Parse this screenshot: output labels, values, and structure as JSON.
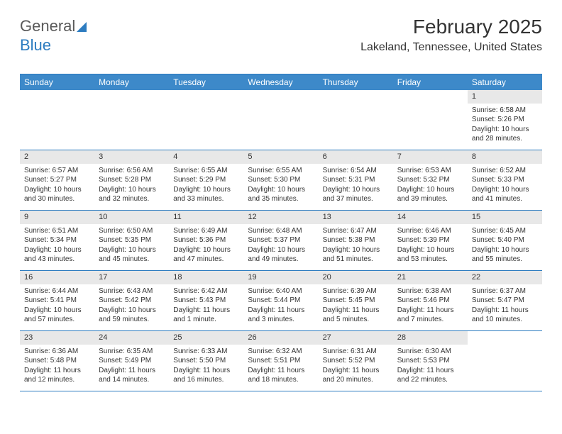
{
  "logo": {
    "text1": "General",
    "text2": "Blue",
    "shape_color": "#2d7cc0"
  },
  "header": {
    "month_title": "February 2025",
    "location": "Lakeland, Tennessee, United States"
  },
  "calendar": {
    "type": "table",
    "header_bg": "#3d89c9",
    "header_text_color": "#ffffff",
    "border_color": "#2d7cc0",
    "daynum_bg": "#e8e8e8",
    "body_font_size": 10,
    "weekdays": [
      "Sunday",
      "Monday",
      "Tuesday",
      "Wednesday",
      "Thursday",
      "Friday",
      "Saturday"
    ],
    "weeks": [
      [
        null,
        null,
        null,
        null,
        null,
        null,
        {
          "num": "1",
          "sunrise": "Sunrise: 6:58 AM",
          "sunset": "Sunset: 5:26 PM",
          "daylight": "Daylight: 10 hours and 28 minutes."
        }
      ],
      [
        {
          "num": "2",
          "sunrise": "Sunrise: 6:57 AM",
          "sunset": "Sunset: 5:27 PM",
          "daylight": "Daylight: 10 hours and 30 minutes."
        },
        {
          "num": "3",
          "sunrise": "Sunrise: 6:56 AM",
          "sunset": "Sunset: 5:28 PM",
          "daylight": "Daylight: 10 hours and 32 minutes."
        },
        {
          "num": "4",
          "sunrise": "Sunrise: 6:55 AM",
          "sunset": "Sunset: 5:29 PM",
          "daylight": "Daylight: 10 hours and 33 minutes."
        },
        {
          "num": "5",
          "sunrise": "Sunrise: 6:55 AM",
          "sunset": "Sunset: 5:30 PM",
          "daylight": "Daylight: 10 hours and 35 minutes."
        },
        {
          "num": "6",
          "sunrise": "Sunrise: 6:54 AM",
          "sunset": "Sunset: 5:31 PM",
          "daylight": "Daylight: 10 hours and 37 minutes."
        },
        {
          "num": "7",
          "sunrise": "Sunrise: 6:53 AM",
          "sunset": "Sunset: 5:32 PM",
          "daylight": "Daylight: 10 hours and 39 minutes."
        },
        {
          "num": "8",
          "sunrise": "Sunrise: 6:52 AM",
          "sunset": "Sunset: 5:33 PM",
          "daylight": "Daylight: 10 hours and 41 minutes."
        }
      ],
      [
        {
          "num": "9",
          "sunrise": "Sunrise: 6:51 AM",
          "sunset": "Sunset: 5:34 PM",
          "daylight": "Daylight: 10 hours and 43 minutes."
        },
        {
          "num": "10",
          "sunrise": "Sunrise: 6:50 AM",
          "sunset": "Sunset: 5:35 PM",
          "daylight": "Daylight: 10 hours and 45 minutes."
        },
        {
          "num": "11",
          "sunrise": "Sunrise: 6:49 AM",
          "sunset": "Sunset: 5:36 PM",
          "daylight": "Daylight: 10 hours and 47 minutes."
        },
        {
          "num": "12",
          "sunrise": "Sunrise: 6:48 AM",
          "sunset": "Sunset: 5:37 PM",
          "daylight": "Daylight: 10 hours and 49 minutes."
        },
        {
          "num": "13",
          "sunrise": "Sunrise: 6:47 AM",
          "sunset": "Sunset: 5:38 PM",
          "daylight": "Daylight: 10 hours and 51 minutes."
        },
        {
          "num": "14",
          "sunrise": "Sunrise: 6:46 AM",
          "sunset": "Sunset: 5:39 PM",
          "daylight": "Daylight: 10 hours and 53 minutes."
        },
        {
          "num": "15",
          "sunrise": "Sunrise: 6:45 AM",
          "sunset": "Sunset: 5:40 PM",
          "daylight": "Daylight: 10 hours and 55 minutes."
        }
      ],
      [
        {
          "num": "16",
          "sunrise": "Sunrise: 6:44 AM",
          "sunset": "Sunset: 5:41 PM",
          "daylight": "Daylight: 10 hours and 57 minutes."
        },
        {
          "num": "17",
          "sunrise": "Sunrise: 6:43 AM",
          "sunset": "Sunset: 5:42 PM",
          "daylight": "Daylight: 10 hours and 59 minutes."
        },
        {
          "num": "18",
          "sunrise": "Sunrise: 6:42 AM",
          "sunset": "Sunset: 5:43 PM",
          "daylight": "Daylight: 11 hours and 1 minute."
        },
        {
          "num": "19",
          "sunrise": "Sunrise: 6:40 AM",
          "sunset": "Sunset: 5:44 PM",
          "daylight": "Daylight: 11 hours and 3 minutes."
        },
        {
          "num": "20",
          "sunrise": "Sunrise: 6:39 AM",
          "sunset": "Sunset: 5:45 PM",
          "daylight": "Daylight: 11 hours and 5 minutes."
        },
        {
          "num": "21",
          "sunrise": "Sunrise: 6:38 AM",
          "sunset": "Sunset: 5:46 PM",
          "daylight": "Daylight: 11 hours and 7 minutes."
        },
        {
          "num": "22",
          "sunrise": "Sunrise: 6:37 AM",
          "sunset": "Sunset: 5:47 PM",
          "daylight": "Daylight: 11 hours and 10 minutes."
        }
      ],
      [
        {
          "num": "23",
          "sunrise": "Sunrise: 6:36 AM",
          "sunset": "Sunset: 5:48 PM",
          "daylight": "Daylight: 11 hours and 12 minutes."
        },
        {
          "num": "24",
          "sunrise": "Sunrise: 6:35 AM",
          "sunset": "Sunset: 5:49 PM",
          "daylight": "Daylight: 11 hours and 14 minutes."
        },
        {
          "num": "25",
          "sunrise": "Sunrise: 6:33 AM",
          "sunset": "Sunset: 5:50 PM",
          "daylight": "Daylight: 11 hours and 16 minutes."
        },
        {
          "num": "26",
          "sunrise": "Sunrise: 6:32 AM",
          "sunset": "Sunset: 5:51 PM",
          "daylight": "Daylight: 11 hours and 18 minutes."
        },
        {
          "num": "27",
          "sunrise": "Sunrise: 6:31 AM",
          "sunset": "Sunset: 5:52 PM",
          "daylight": "Daylight: 11 hours and 20 minutes."
        },
        {
          "num": "28",
          "sunrise": "Sunrise: 6:30 AM",
          "sunset": "Sunset: 5:53 PM",
          "daylight": "Daylight: 11 hours and 22 minutes."
        },
        null
      ]
    ]
  }
}
